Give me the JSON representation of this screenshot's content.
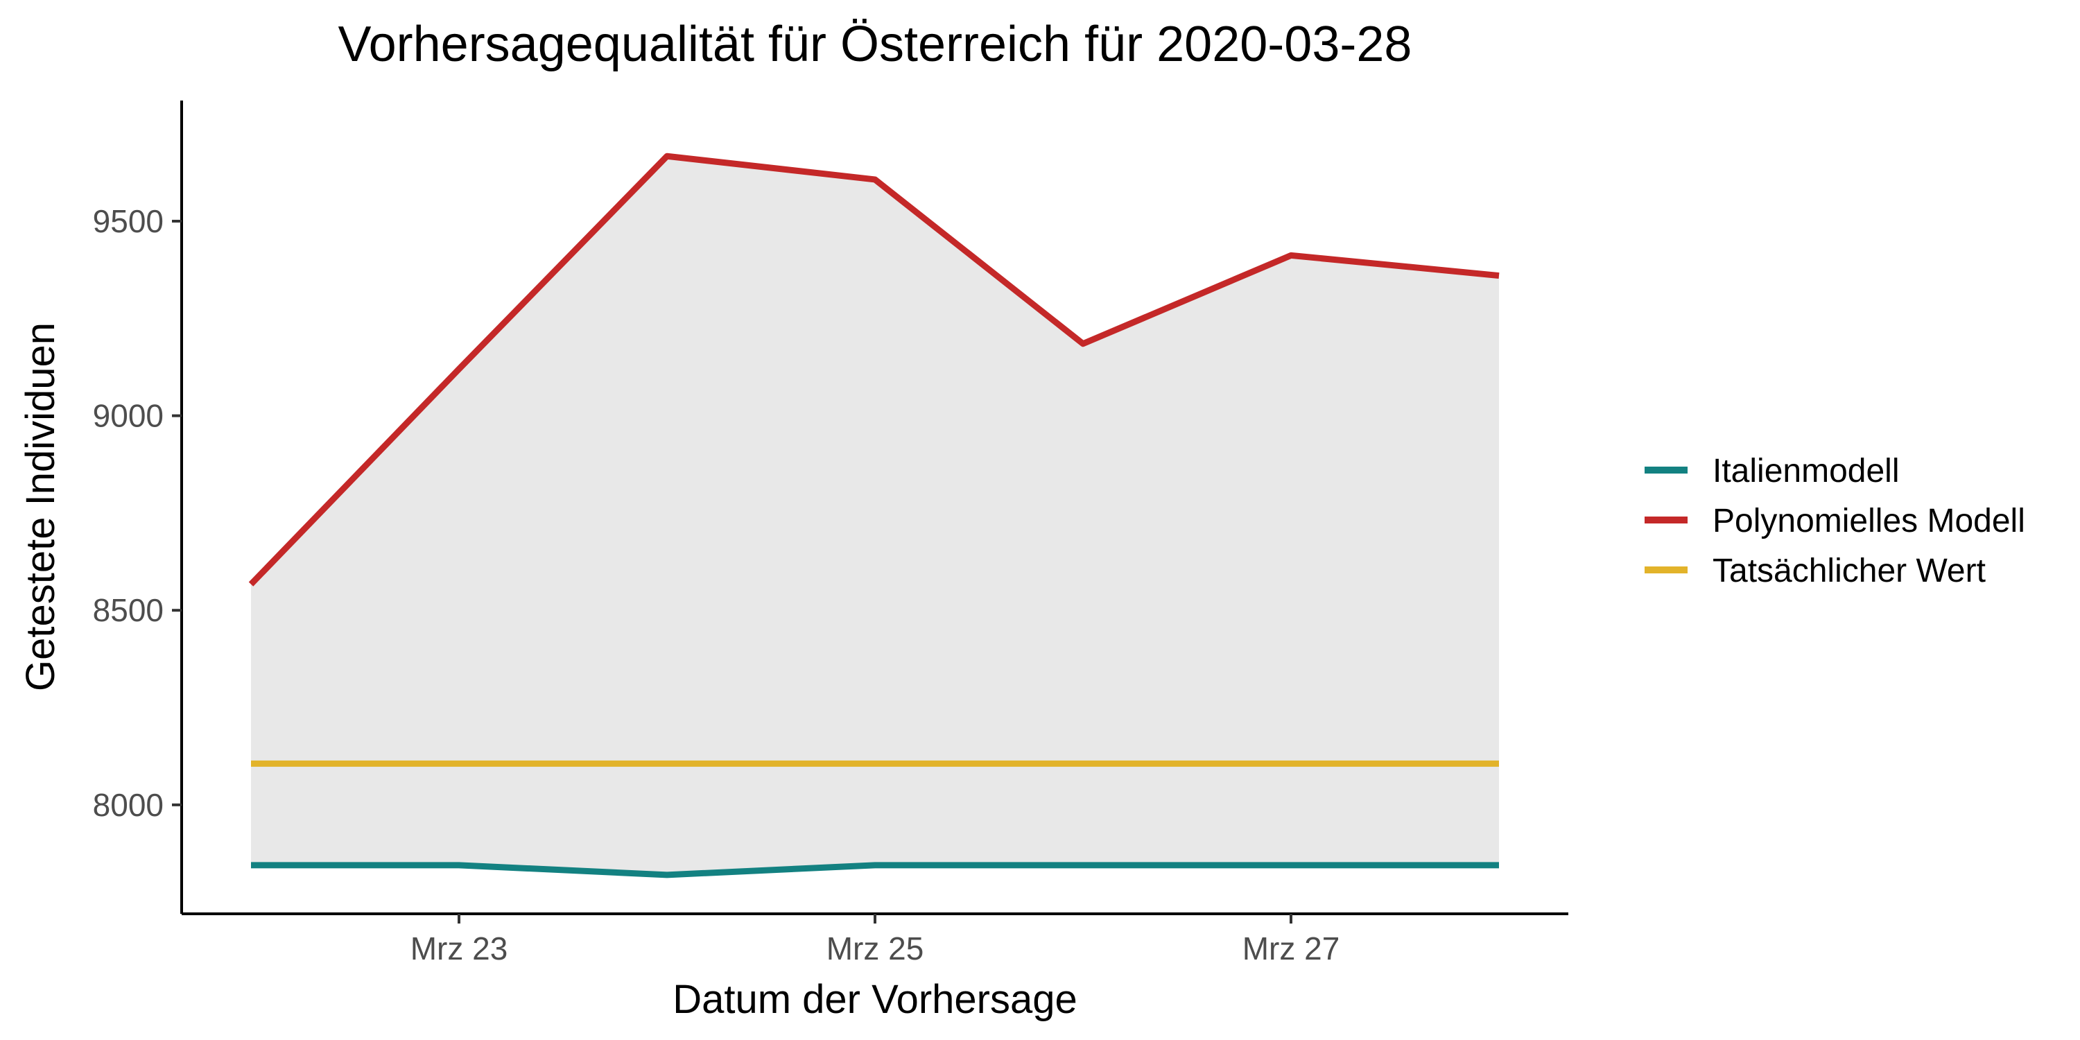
{
  "chart_data": {
    "type": "line",
    "title": "Vorhersagequalität für Österreich für 2020-03-28",
    "xlabel": "Datum der Vorhersage",
    "ylabel": "Getestete Individuen",
    "x": [
      "2020-03-22",
      "2020-03-23",
      "2020-03-24",
      "2020-03-25",
      "2020-03-26",
      "2020-03-27",
      "2020-03-28"
    ],
    "x_ticks": [
      {
        "date": "2020-03-23",
        "label": "Mrz 23"
      },
      {
        "date": "2020-03-25",
        "label": "Mrz 25"
      },
      {
        "date": "2020-03-27",
        "label": "Mrz 27"
      }
    ],
    "xlim": [
      "2020-03-21T16:00",
      "2020-03-28T08:00"
    ],
    "ylim": [
      7720,
      9810
    ],
    "y_ticks": [
      8000,
      8500,
      9000,
      9500
    ],
    "grid": false,
    "legend_position": "right",
    "shaded_band": {
      "between": [
        "Italienmodell",
        "Polynomielles Modell"
      ],
      "color": "#e8e8e8"
    },
    "series": [
      {
        "name": "Italienmodell",
        "color": "#138181",
        "values": [
          7845,
          7845,
          7820,
          7845,
          7845,
          7845,
          7845
        ]
      },
      {
        "name": "Polynomielles Modell",
        "color": "#c42828",
        "values": [
          8567,
          9120,
          9667,
          9607,
          9185,
          9412,
          9360
        ]
      },
      {
        "name": "Tatsächlicher Wert",
        "color": "#e2b32a",
        "values": [
          8106,
          8106,
          8106,
          8106,
          8106,
          8106,
          8106
        ]
      }
    ]
  }
}
